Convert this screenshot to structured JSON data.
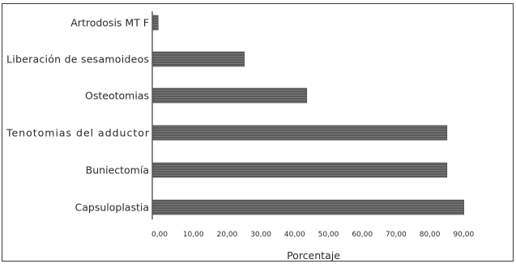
{
  "chart_data": {
    "type": "bar",
    "orientation": "horizontal",
    "categories": [
      "Artrodosis MT F",
      "Liberación de sesamoideos",
      "Osteotomias",
      "Tenotomias del adductor",
      "Buniectomía",
      "Capsuloplastia"
    ],
    "values": [
      1.5,
      27.0,
      45.5,
      87.0,
      87.0,
      92.0
    ],
    "xlabel": "Porcentaje",
    "ylabel": "",
    "title": "",
    "xlim": [
      0,
      90
    ],
    "xticks": [
      0,
      10,
      20,
      30,
      40,
      50,
      60,
      70,
      80,
      90
    ],
    "xtick_labels": [
      "0,00",
      "10,00",
      "20,00",
      "30,00",
      "40,00",
      "50,00",
      "60,00",
      "70,00",
      "80,00",
      "90,00"
    ],
    "grid": false,
    "legend": "none",
    "bar_color": "#5a5a5a"
  }
}
